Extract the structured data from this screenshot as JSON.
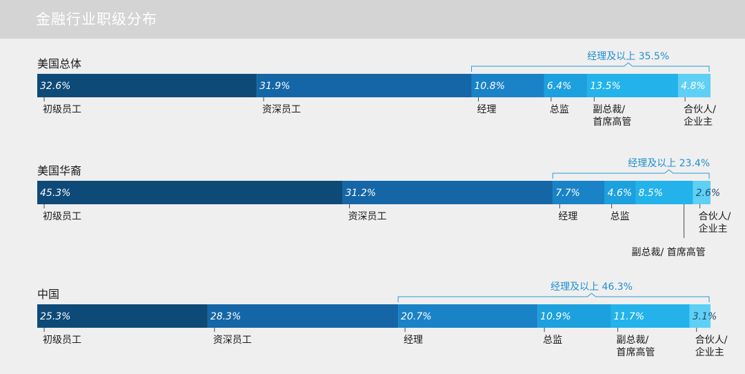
{
  "title": "金融行业职级分布",
  "colors": [
    "#0e4a78",
    "#1566a6",
    "#1a82c7",
    "#1ca0de",
    "#23b3ea",
    "#5ed0f5"
  ],
  "chart_data": {
    "type": "bar",
    "stacked": true,
    "orientation": "horizontal",
    "unit": "%",
    "rows": [
      {
        "name": "美国总体",
        "values": [
          32.6,
          31.9,
          10.8,
          6.4,
          13.5,
          4.8
        ],
        "labels": [
          "32.6%",
          "31.9%",
          "10.8%",
          "6.4%",
          "13.5%",
          "4.8%"
        ],
        "categories": [
          "初级员工",
          "资深员工",
          "经理",
          "总监",
          "副总裁/\n首席高管",
          "合伙人/\n企业主"
        ],
        "brace": "经理及以上 35.5%"
      },
      {
        "name": "美国华裔",
        "values": [
          45.3,
          31.2,
          7.7,
          4.6,
          8.5,
          2.6
        ],
        "labels": [
          "45.3%",
          "31.2%",
          "7.7%",
          "4.6%",
          "8.5%",
          "2.6%"
        ],
        "categories": [
          "初级员工",
          "资深员工",
          "经理",
          "总监",
          "副总裁/ 首席高管",
          "合伙人/\n企业主"
        ],
        "brace": "经理及以上 23.4%"
      },
      {
        "name": "中国",
        "values": [
          25.3,
          28.3,
          20.7,
          10.9,
          11.7,
          3.1
        ],
        "labels": [
          "25.3%",
          "28.3%",
          "20.7%",
          "10.9%",
          "11.7%",
          "3.1%"
        ],
        "categories": [
          "初级员工",
          "资深员工",
          "经理",
          "总监",
          "副总裁/\n首席高管",
          "合伙人/\n企业主"
        ],
        "brace": "经理及以上 46.3%"
      }
    ]
  }
}
